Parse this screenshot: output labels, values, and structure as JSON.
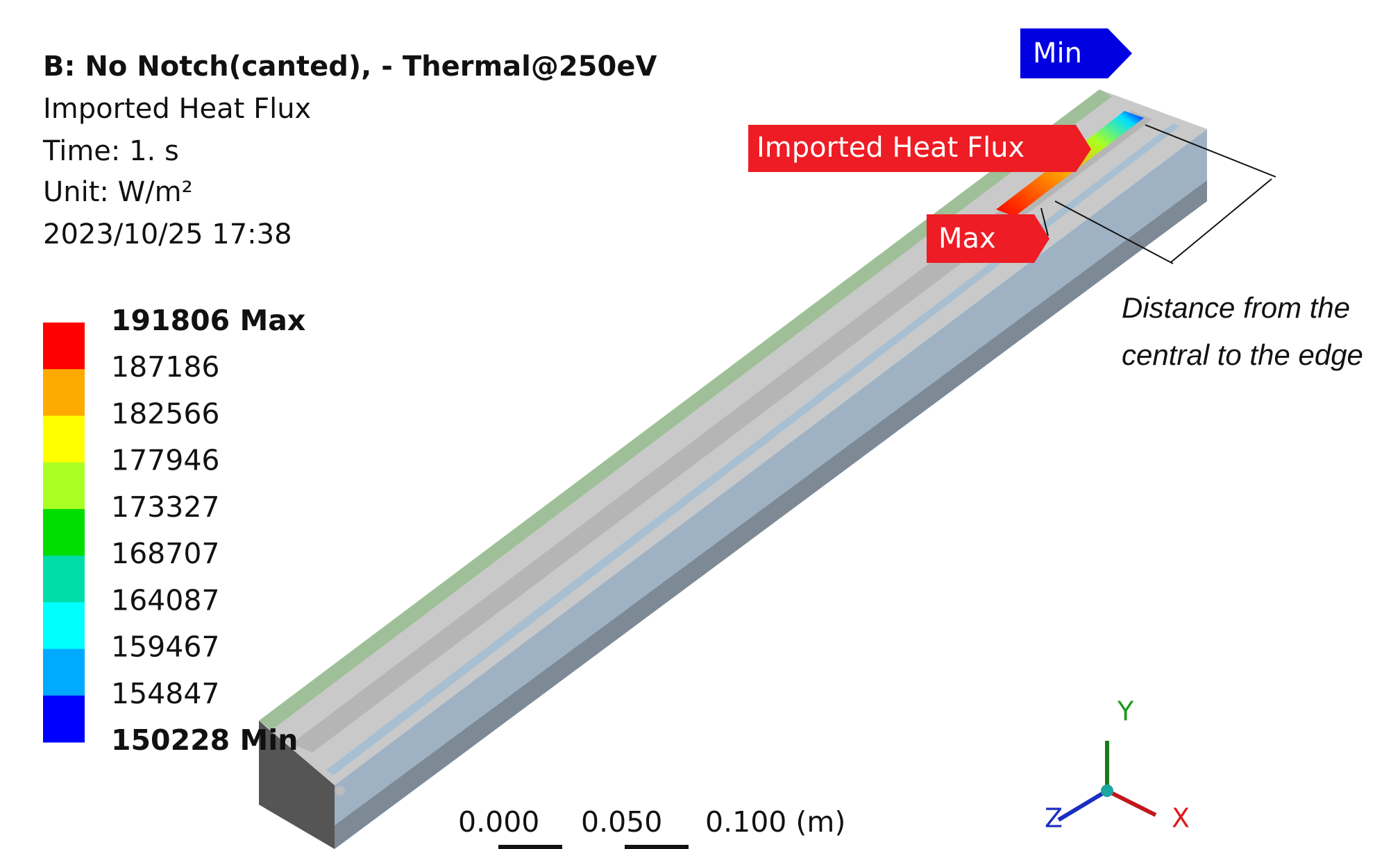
{
  "header": {
    "title": "B: No Notch(canted),  - Thermal@250eV",
    "lines": [
      "Imported Heat Flux",
      "Time: 1. s",
      "Unit: W/m²",
      "2023/10/25 17:38"
    ]
  },
  "legend": {
    "labels": [
      "191806 Max",
      "187186",
      "182566",
      "177946",
      "173327",
      "168707",
      "164087",
      "159467",
      "154847",
      "150228 Min"
    ],
    "colors": [
      "#ff0000",
      "#ffaa00",
      "#ffff00",
      "#aaff22",
      "#00dd00",
      "#00ddaa",
      "#00ffff",
      "#00aaff",
      "#0000ff"
    ]
  },
  "probes": {
    "min": "Min",
    "max": "Max",
    "result": "Imported Heat Flux"
  },
  "annotation": [
    "Distance from the",
    "central to the edge"
  ],
  "scale_bar": [
    "0.000",
    "0.050",
    "0.100 (m)"
  ],
  "triad": {
    "x": "X",
    "y": "Y",
    "z": "Z"
  }
}
